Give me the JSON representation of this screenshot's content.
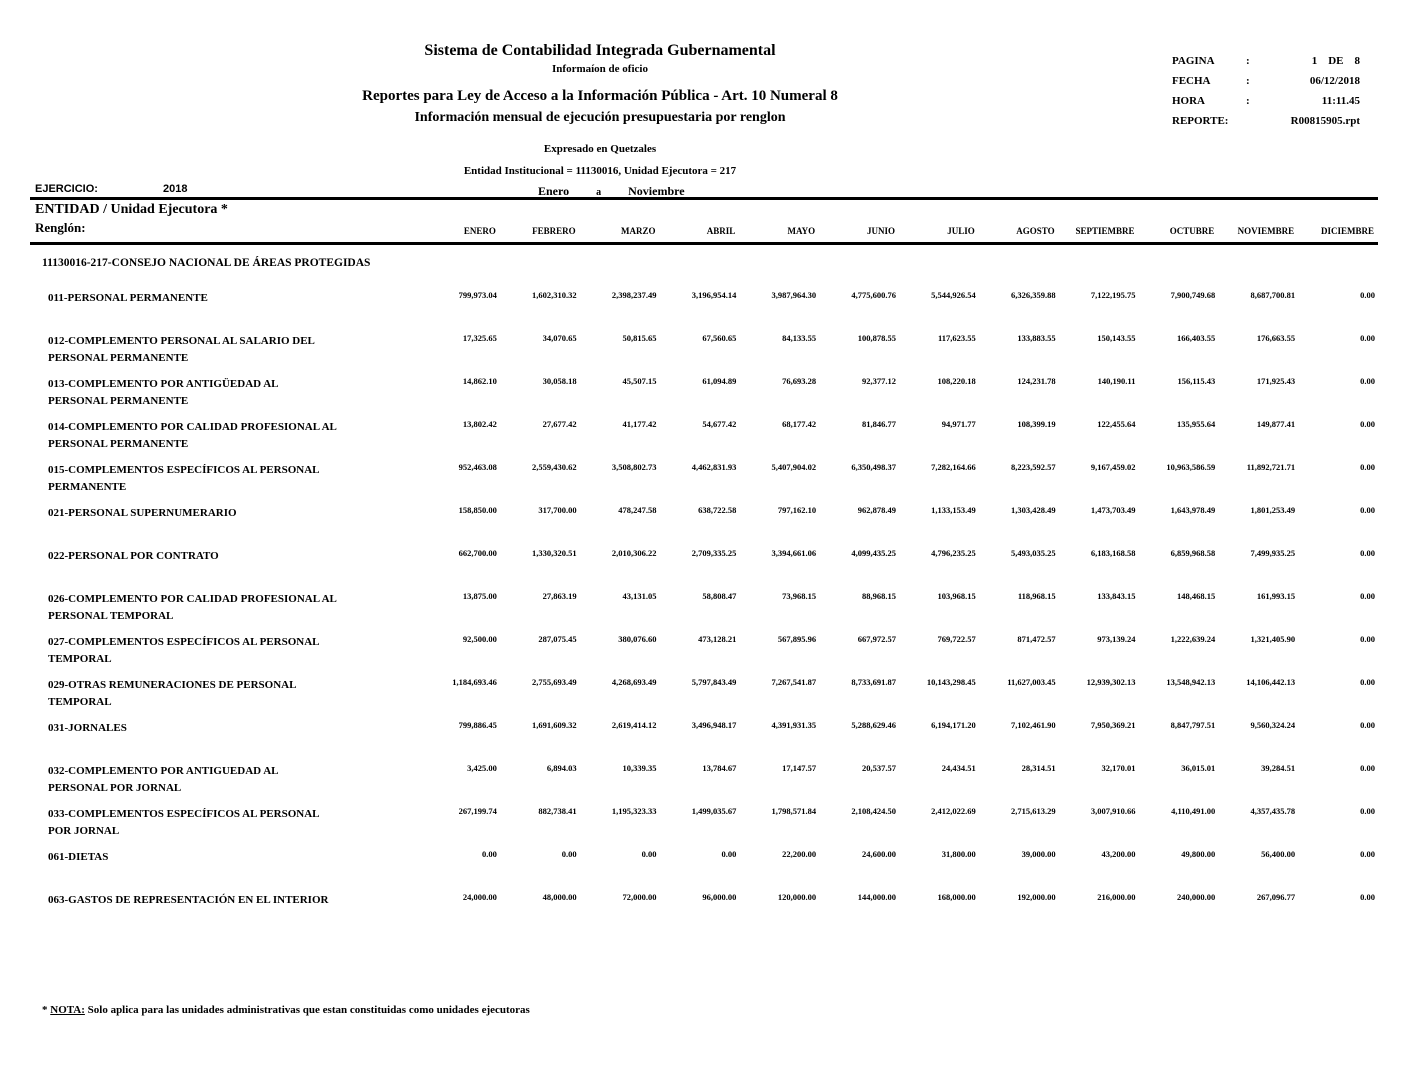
{
  "header": {
    "title": "Sistema de Contabilidad Integrada Gubernamental",
    "subtitle": "Informaíon de oficio",
    "report_line1": "Reportes para Ley de Acceso a la Información Pública - Art. 10 Numeral 8",
    "report_line2": "Información mensual de ejecución presupuestaria por renglon",
    "currency_note": "Expresado en Quetzales",
    "entity_line": "Entidad Institucional = 11130016, Unidad Ejecutora = 217",
    "period_from": "Enero",
    "period_sep": "a",
    "period_to": "Noviembre"
  },
  "meta": {
    "rows": [
      {
        "label": "PAGINA",
        "colon": ":",
        "value": "1    DE    8"
      },
      {
        "label": "FECHA",
        "colon": ":",
        "value": "06/12/2018"
      },
      {
        "label": "HORA",
        "colon": ":",
        "value": "11:11.45"
      },
      {
        "label": "REPORTE:",
        "colon": "",
        "value": "R00815905.rpt"
      }
    ]
  },
  "filters": {
    "ejercicio_label": "EJERCICIO:",
    "ejercicio_value": "2018",
    "entidad_label": "ENTIDAD  / Unidad Ejecutora *",
    "renglon_label": "Renglón:"
  },
  "table": {
    "months": [
      "ENERO",
      "FEBRERO",
      "MARZO",
      "ABRIL",
      "MAYO",
      "JUNIO",
      "JULIO",
      "AGOSTO",
      "SEPTIEMBRE",
      "OCTUBRE",
      "NOVIEMBRE",
      "DICIEMBRE"
    ],
    "section_title": "11130016-217-CONSEJO NACIONAL DE ÁREAS PROTEGIDAS",
    "rows": [
      {
        "label": "011-PERSONAL PERMANENTE",
        "values": [
          "799,973.04",
          "1,602,310.32",
          "2,398,237.49",
          "3,196,954.14",
          "3,987,964.30",
          "4,775,600.76",
          "5,544,926.54",
          "6,326,359.88",
          "7,122,195.75",
          "7,900,749.68",
          "8,687,700.81",
          "0.00"
        ]
      },
      {
        "label": "012-COMPLEMENTO PERSONAL AL SALARIO DEL PERSONAL PERMANENTE",
        "values": [
          "17,325.65",
          "34,070.65",
          "50,815.65",
          "67,560.65",
          "84,133.55",
          "100,878.55",
          "117,623.55",
          "133,883.55",
          "150,143.55",
          "166,403.55",
          "176,663.55",
          "0.00"
        ]
      },
      {
        "label": "013-COMPLEMENTO POR ANTIGÜEDAD AL PERSONAL PERMANENTE",
        "values": [
          "14,862.10",
          "30,058.18",
          "45,507.15",
          "61,094.89",
          "76,693.28",
          "92,377.12",
          "108,220.18",
          "124,231.78",
          "140,190.11",
          "156,115.43",
          "171,925.43",
          "0.00"
        ]
      },
      {
        "label": "014-COMPLEMENTO POR CALIDAD PROFESIONAL AL PERSONAL PERMANENTE",
        "values": [
          "13,802.42",
          "27,677.42",
          "41,177.42",
          "54,677.42",
          "68,177.42",
          "81,846.77",
          "94,971.77",
          "108,399.19",
          "122,455.64",
          "135,955.64",
          "149,877.41",
          "0.00"
        ]
      },
      {
        "label": "015-COMPLEMENTOS ESPECÍFICOS AL PERSONAL PERMANENTE",
        "values": [
          "952,463.08",
          "2,559,430.62",
          "3,508,802.73",
          "4,462,831.93",
          "5,407,904.02",
          "6,350,498.37",
          "7,282,164.66",
          "8,223,592.57",
          "9,167,459.02",
          "10,963,586.59",
          "11,892,721.71",
          "0.00"
        ]
      },
      {
        "label": "021-PERSONAL SUPERNUMERARIO",
        "values": [
          "158,850.00",
          "317,700.00",
          "478,247.58",
          "638,722.58",
          "797,162.10",
          "962,878.49",
          "1,133,153.49",
          "1,303,428.49",
          "1,473,703.49",
          "1,643,978.49",
          "1,801,253.49",
          "0.00"
        ]
      },
      {
        "label": "022-PERSONAL POR CONTRATO",
        "values": [
          "662,700.00",
          "1,330,320.51",
          "2,010,306.22",
          "2,709,335.25",
          "3,394,661.06",
          "4,099,435.25",
          "4,796,235.25",
          "5,493,035.25",
          "6,183,168.58",
          "6,859,968.58",
          "7,499,935.25",
          "0.00"
        ]
      },
      {
        "label": "026-COMPLEMENTO POR CALIDAD PROFESIONAL AL PERSONAL TEMPORAL",
        "values": [
          "13,875.00",
          "27,863.19",
          "43,131.05",
          "58,808.47",
          "73,968.15",
          "88,968.15",
          "103,968.15",
          "118,968.15",
          "133,843.15",
          "148,468.15",
          "161,993.15",
          "0.00"
        ]
      },
      {
        "label": "027-COMPLEMENTOS ESPECÍFICOS AL PERSONAL TEMPORAL",
        "values": [
          "92,500.00",
          "287,075.45",
          "380,076.60",
          "473,128.21",
          "567,895.96",
          "667,972.57",
          "769,722.57",
          "871,472.57",
          "973,139.24",
          "1,222,639.24",
          "1,321,405.90",
          "0.00"
        ]
      },
      {
        "label": "029-OTRAS REMUNERACIONES DE PERSONAL TEMPORAL",
        "values": [
          "1,184,693.46",
          "2,755,693.49",
          "4,268,693.49",
          "5,797,843.49",
          "7,267,541.87",
          "8,733,691.87",
          "10,143,298.45",
          "11,627,003.45",
          "12,939,302.13",
          "13,548,942.13",
          "14,106,442.13",
          "0.00"
        ]
      },
      {
        "label": "031-JORNALES",
        "values": [
          "799,886.45",
          "1,691,609.32",
          "2,619,414.12",
          "3,496,948.17",
          "4,391,931.35",
          "5,288,629.46",
          "6,194,171.20",
          "7,102,461.90",
          "7,950,369.21",
          "8,847,797.51",
          "9,560,324.24",
          "0.00"
        ]
      },
      {
        "label": "032-COMPLEMENTO POR ANTIGUEDAD AL PERSONAL POR JORNAL",
        "values": [
          "3,425.00",
          "6,894.03",
          "10,339.35",
          "13,784.67",
          "17,147.57",
          "20,537.57",
          "24,434.51",
          "28,314.51",
          "32,170.01",
          "36,015.01",
          "39,284.51",
          "0.00"
        ]
      },
      {
        "label": "033-COMPLEMENTOS ESPECÍFICOS AL PERSONAL POR JORNAL",
        "values": [
          "267,199.74",
          "882,738.41",
          "1,195,323.33",
          "1,499,035.67",
          "1,798,571.84",
          "2,108,424.50",
          "2,412,022.69",
          "2,715,613.29",
          "3,007,910.66",
          "4,110,491.00",
          "4,357,435.78",
          "0.00"
        ]
      },
      {
        "label": "061-DIETAS",
        "values": [
          "0.00",
          "0.00",
          "0.00",
          "0.00",
          "22,200.00",
          "24,600.00",
          "31,800.00",
          "39,000.00",
          "43,200.00",
          "49,800.00",
          "56,400.00",
          "0.00"
        ]
      },
      {
        "label": "063-GASTOS DE REPRESENTACIÓN EN EL INTERIOR",
        "values": [
          "24,000.00",
          "48,000.00",
          "72,000.00",
          "96,000.00",
          "120,000.00",
          "144,000.00",
          "168,000.00",
          "192,000.00",
          "216,000.00",
          "240,000.00",
          "267,096.77",
          "0.00"
        ]
      }
    ]
  },
  "footer": {
    "star": "*",
    "nota": "NOTA:",
    "text": "Solo aplica para las unidades administrativas que estan constituidas como unidades ejecutoras"
  }
}
